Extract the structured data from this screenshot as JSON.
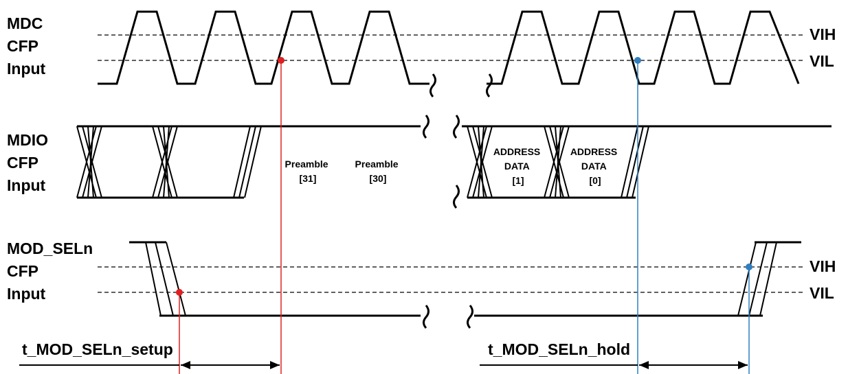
{
  "mdc": {
    "label_lines": [
      "MDC",
      "CFP",
      "Input"
    ]
  },
  "mdio": {
    "label_lines": [
      "MDIO",
      "CFP",
      "Input"
    ]
  },
  "modsel": {
    "label_lines": [
      "MOD_SELn",
      "CFP",
      "Input"
    ]
  },
  "thresholds": {
    "vih": "VIH",
    "vil": "VIL"
  },
  "mdio_fields": {
    "preamble_31": [
      "Preamble",
      "[31]"
    ],
    "preamble_30": [
      "Preamble",
      "[30]"
    ],
    "address_data_1": [
      "ADDRESS",
      "DATA",
      "[1]"
    ],
    "address_data_0": [
      "ADDRESS",
      "DATA",
      "[0]"
    ]
  },
  "timing": {
    "setup": "t_MOD_SELn_setup",
    "hold": "t_MOD_SELn_hold"
  },
  "colors": {
    "setup_marker": "#e02020",
    "hold_marker": "#2f7fc0",
    "signal": "#000000",
    "background": "#ffffff"
  }
}
